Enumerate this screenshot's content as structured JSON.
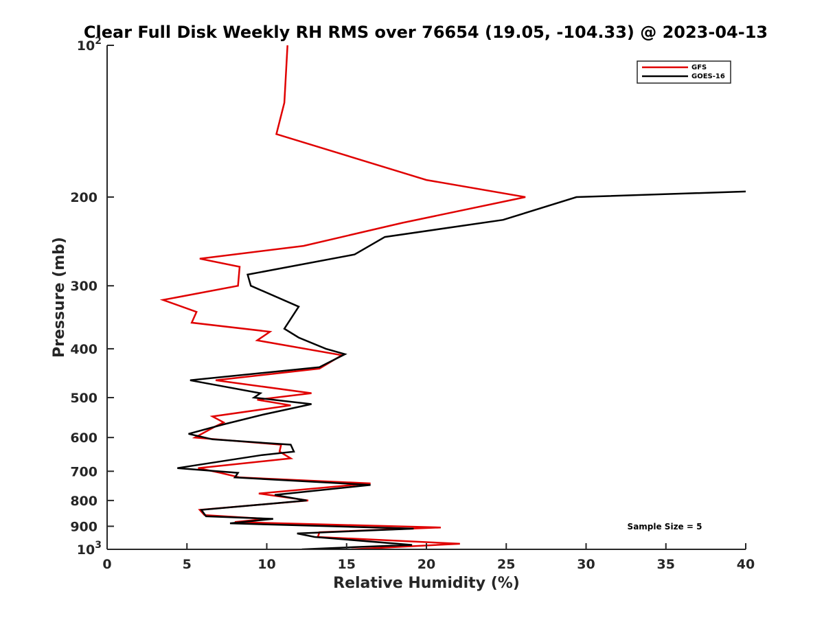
{
  "chart_data": {
    "type": "line",
    "title": "Clear Full Disk Weekly RH RMS over 76654 (19.05, -104.33) @ 2023-04-13",
    "xlabel": "Relative Humidity (%)",
    "ylabel": "Pressure (mb)",
    "xlim": [
      0,
      40
    ],
    "ylim": [
      100,
      1000
    ],
    "yscale": "log",
    "yreversed": true,
    "x_ticks": [
      0,
      5,
      10,
      15,
      20,
      25,
      30,
      35,
      40
    ],
    "x_tick_labels": [
      "0",
      "5",
      "10",
      "15",
      "20",
      "25",
      "30",
      "35",
      "40"
    ],
    "y_ticks": [
      100,
      200,
      300,
      400,
      500,
      600,
      700,
      800,
      900,
      1000
    ],
    "y_tick_labels": [
      {
        "base": "10",
        "exp": "2"
      },
      {
        "base": "200",
        "exp": ""
      },
      {
        "base": "300",
        "exp": ""
      },
      {
        "base": "400",
        "exp": ""
      },
      {
        "base": "500",
        "exp": ""
      },
      {
        "base": "600",
        "exp": ""
      },
      {
        "base": "700",
        "exp": ""
      },
      {
        "base": "800",
        "exp": ""
      },
      {
        "base": "900",
        "exp": ""
      },
      {
        "base": "10",
        "exp": "3"
      }
    ],
    "legend_position": "top-right",
    "annotation": "Sample Size = 5",
    "series": [
      {
        "name": "GFS",
        "color": "#e00000",
        "points": [
          [
            11.3,
            100
          ],
          [
            11.1,
            130
          ],
          [
            10.6,
            150
          ],
          [
            20.0,
            185
          ],
          [
            26.2,
            200
          ],
          [
            18.5,
            225
          ],
          [
            12.3,
            250
          ],
          [
            5.8,
            265
          ],
          [
            8.3,
            275
          ],
          [
            8.2,
            300
          ],
          [
            3.5,
            320
          ],
          [
            5.6,
            338
          ],
          [
            5.3,
            355
          ],
          [
            10.2,
            370
          ],
          [
            9.4,
            385
          ],
          [
            14.7,
            412
          ],
          [
            13.3,
            438
          ],
          [
            6.8,
            462
          ],
          [
            12.8,
            490
          ],
          [
            9.4,
            505
          ],
          [
            11.5,
            518
          ],
          [
            6.6,
            545
          ],
          [
            7.3,
            560
          ],
          [
            6.8,
            570
          ],
          [
            5.5,
            600
          ],
          [
            10.9,
            620
          ],
          [
            10.8,
            640
          ],
          [
            11.5,
            660
          ],
          [
            5.7,
            690
          ],
          [
            7.1,
            705
          ],
          [
            8.3,
            720
          ],
          [
            16.5,
            740
          ],
          [
            9.5,
            775
          ],
          [
            12.6,
            800
          ],
          [
            5.8,
            835
          ],
          [
            6.1,
            855
          ],
          [
            10.0,
            870
          ],
          [
            8.0,
            883
          ],
          [
            20.9,
            905
          ],
          [
            13.3,
            925
          ],
          [
            13.2,
            945
          ],
          [
            22.1,
            975
          ],
          [
            15.3,
            1000
          ]
        ]
      },
      {
        "name": "GOES-16",
        "color": "#000000",
        "points": [
          [
            40.0,
            195
          ],
          [
            29.4,
            200
          ],
          [
            24.8,
            222
          ],
          [
            17.4,
            240
          ],
          [
            15.5,
            260
          ],
          [
            8.8,
            285
          ],
          [
            9.0,
            300
          ],
          [
            12.0,
            330
          ],
          [
            11.1,
            365
          ],
          [
            12.0,
            380
          ],
          [
            13.7,
            400
          ],
          [
            14.9,
            410
          ],
          [
            13.3,
            435
          ],
          [
            5.2,
            462
          ],
          [
            9.6,
            490
          ],
          [
            9.2,
            500
          ],
          [
            12.8,
            515
          ],
          [
            9.8,
            540
          ],
          [
            7.3,
            565
          ],
          [
            5.1,
            590
          ],
          [
            6.6,
            605
          ],
          [
            11.5,
            620
          ],
          [
            11.7,
            640
          ],
          [
            9.7,
            650
          ],
          [
            4.4,
            690
          ],
          [
            8.2,
            705
          ],
          [
            8.0,
            720
          ],
          [
            16.5,
            745
          ],
          [
            10.5,
            780
          ],
          [
            12.5,
            800
          ],
          [
            5.9,
            835
          ],
          [
            6.2,
            860
          ],
          [
            10.4,
            870
          ],
          [
            7.7,
            888
          ],
          [
            19.2,
            910
          ],
          [
            11.9,
            930
          ],
          [
            13.0,
            945
          ],
          [
            19.1,
            980
          ],
          [
            15.5,
            990
          ],
          [
            12.2,
            1000
          ]
        ]
      }
    ]
  }
}
